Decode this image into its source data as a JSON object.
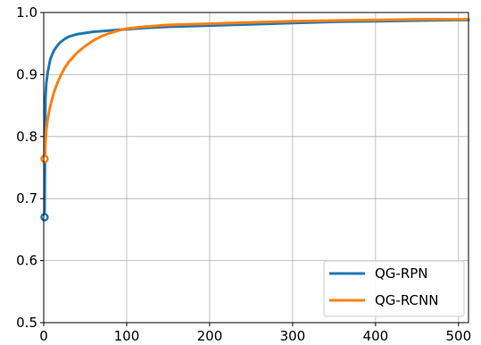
{
  "chart_data": {
    "type": "line",
    "title": "",
    "xlabel": "",
    "ylabel": "",
    "xlim": [
      0,
      512
    ],
    "ylim": [
      0.5,
      1.0
    ],
    "x_ticks": [
      0,
      100,
      200,
      300,
      400,
      500
    ],
    "x_tick_labels": [
      "0",
      "100",
      "200",
      "300",
      "400",
      "500"
    ],
    "y_ticks": [
      0.5,
      0.6,
      0.7,
      0.8,
      0.9,
      1.0
    ],
    "y_tick_labels": [
      "0.5",
      "0.6",
      "0.7",
      "0.8",
      "0.9",
      "1.0"
    ],
    "grid": true,
    "legend_position": "bottom-right",
    "series": [
      {
        "name": "QG-RPN",
        "color": "#1f77b4",
        "start_marker": [
          1,
          0.67
        ],
        "x": [
          1,
          2,
          3,
          5,
          8,
          12,
          16,
          20,
          25,
          30,
          40,
          50,
          60,
          70,
          80,
          90,
          100,
          120,
          150,
          200,
          250,
          300,
          350,
          400,
          450,
          500,
          512
        ],
        "y": [
          0.67,
          0.86,
          0.885,
          0.905,
          0.925,
          0.938,
          0.946,
          0.952,
          0.957,
          0.961,
          0.965,
          0.967,
          0.969,
          0.97,
          0.971,
          0.972,
          0.973,
          0.975,
          0.977,
          0.979,
          0.981,
          0.983,
          0.985,
          0.986,
          0.987,
          0.988,
          0.988
        ]
      },
      {
        "name": "QG-RCNN",
        "color": "#ff7f0e",
        "start_marker": [
          1,
          0.764
        ],
        "x": [
          1,
          2,
          3,
          5,
          8,
          12,
          16,
          20,
          25,
          30,
          40,
          50,
          60,
          70,
          80,
          90,
          100,
          120,
          150,
          200,
          250,
          300,
          350,
          400,
          450,
          500,
          512
        ],
        "y": [
          0.764,
          0.79,
          0.81,
          0.83,
          0.85,
          0.87,
          0.885,
          0.897,
          0.91,
          0.92,
          0.935,
          0.946,
          0.955,
          0.962,
          0.967,
          0.971,
          0.974,
          0.977,
          0.98,
          0.982,
          0.984,
          0.986,
          0.987,
          0.988,
          0.989,
          0.989,
          0.989
        ]
      }
    ]
  }
}
